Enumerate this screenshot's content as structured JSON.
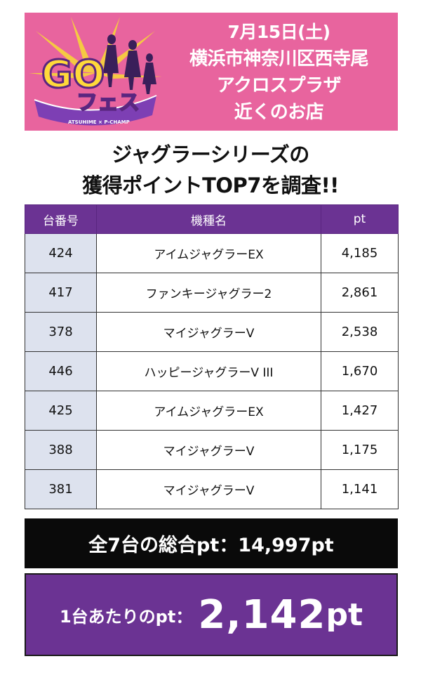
{
  "logo": {
    "icon": "go-fes-logo",
    "text_main": "GO",
    "text_sub": "フェス",
    "tagline": "ATSUHIME × P-CHAMP"
  },
  "event": {
    "date": "7月15日(土)",
    "location_line1": "横浜市神奈川区西寺尾",
    "location_line2": "アクロスプラザ",
    "location_line3": "近くのお店"
  },
  "headline": {
    "line1": "ジャグラーシリーズの",
    "line2": "獲得ポイントTOP7を調査!!"
  },
  "table": {
    "headers": [
      "台番号",
      "機種名",
      "pt"
    ],
    "rows": [
      {
        "num": "424",
        "name": "アイムジャグラーEX",
        "pt": "4,185"
      },
      {
        "num": "417",
        "name": "ファンキージャグラー2",
        "pt": "2,861"
      },
      {
        "num": "378",
        "name": "マイジャグラーV",
        "pt": "2,538"
      },
      {
        "num": "446",
        "name": "ハッピージャグラーV III",
        "pt": "1,670"
      },
      {
        "num": "425",
        "name": "アイムジャグラーEX",
        "pt": "1,427"
      },
      {
        "num": "388",
        "name": "マイジャグラーV",
        "pt": "1,175"
      },
      {
        "num": "381",
        "name": "マイジャグラーV",
        "pt": "1,141"
      }
    ]
  },
  "total": {
    "label": "全7台の総合pt：14,997pt"
  },
  "per_machine": {
    "label": "1台あたりのpt：",
    "value": "2,142",
    "unit": "pt"
  },
  "colors": {
    "banner_pink": "#e8649e",
    "header_purple": "#6b3393",
    "number_cell": "#dde2ee",
    "total_bar": "#0a0a0a"
  }
}
